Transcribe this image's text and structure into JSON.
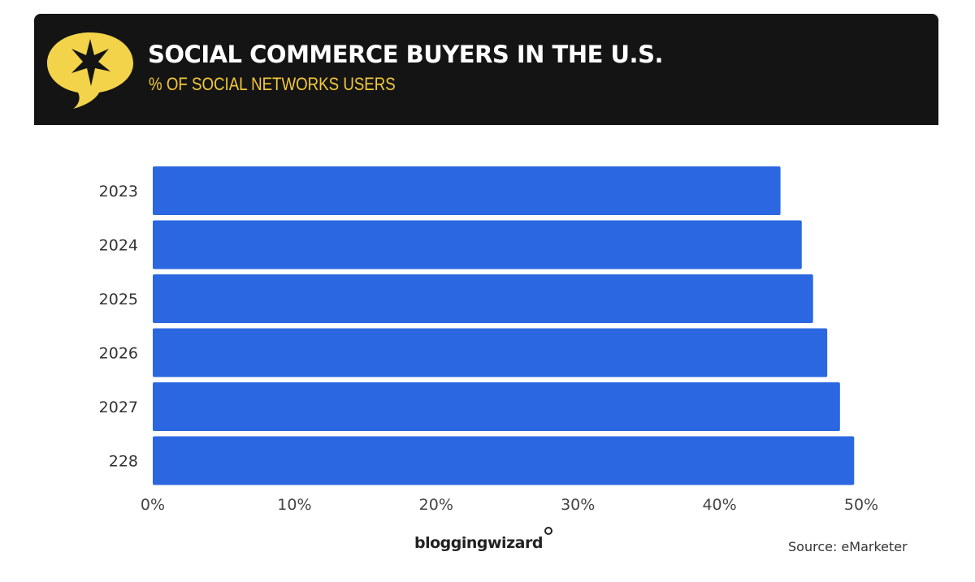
{
  "header": {
    "title": "SOCIAL COMMERCE BUYERS IN THE U.S.",
    "subtitle": "% OF SOCIAL NETWORKS USERS",
    "icon": "star-speech-bubble-icon"
  },
  "footer": {
    "brand": "bloggingwizard",
    "source": "Source: eMarketer"
  },
  "colors": {
    "bar": "#2b67e0",
    "header_bg": "#141414",
    "accent": "#f3c937"
  },
  "chart_data": {
    "type": "bar",
    "orientation": "horizontal",
    "title": "SOCIAL COMMERCE BUYERS IN THE U.S.",
    "subtitle": "% OF SOCIAL NETWORKS USERS",
    "categories": [
      "2023",
      "2024",
      "2025",
      "2026",
      "2027",
      "228"
    ],
    "values": [
      44.3,
      45.8,
      46.6,
      47.6,
      48.5,
      49.5
    ],
    "unit": "%",
    "xlim": [
      0,
      50
    ],
    "xticks": [
      "0%",
      "10%",
      "20%",
      "30%",
      "40%",
      "50%"
    ],
    "xlabel": "",
    "ylabel": "",
    "grid": false,
    "legend": "none"
  }
}
